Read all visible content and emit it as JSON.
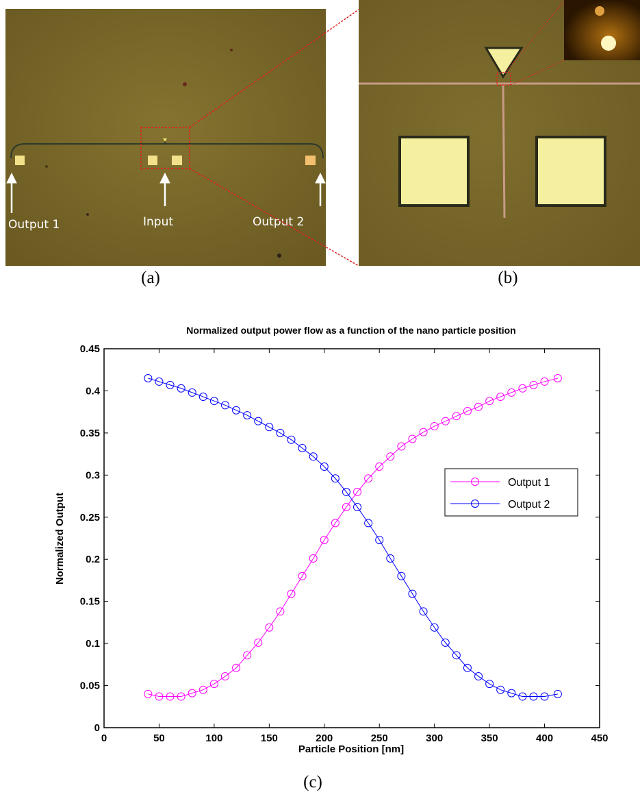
{
  "figure": {
    "panel_a": {
      "caption": "(a)",
      "labels": {
        "output1": "Output 1",
        "input": "Input",
        "output2": "Output 2"
      },
      "colors": {
        "background": "#7c6a2a",
        "pad": "#f3e08a",
        "waveguide": "#2d3a2a"
      }
    },
    "panel_b": {
      "caption": "(b)",
      "colors": {
        "background": "#7a6a2c",
        "pad": "#f5f0a0",
        "waveguide": "#c79b86"
      }
    },
    "panel_c": {
      "caption": "(c)"
    },
    "zoom_box_color": "#e02020"
  },
  "chart_data": {
    "type": "line",
    "title": "Normalized output power flow as a function of the nano particle position",
    "xlabel": "Particle Position [nm]",
    "ylabel": "Normalized Output",
    "xlim": [
      0,
      450
    ],
    "ylim": [
      0,
      0.45
    ],
    "xticks": [
      0,
      50,
      100,
      150,
      200,
      250,
      300,
      350,
      400,
      450
    ],
    "yticks": [
      0,
      0.05,
      0.1,
      0.15,
      0.2,
      0.25,
      0.3,
      0.35,
      0.4,
      0.45
    ],
    "ytick_labels": [
      "0",
      "0.05",
      "0.1",
      "0.15",
      "0.2",
      "0.25",
      "0.3",
      "0.35",
      "0.4",
      "0.45"
    ],
    "legend_position": "right",
    "grid": false,
    "x": [
      40,
      50,
      60,
      70,
      80,
      90,
      100,
      110,
      120,
      130,
      140,
      150,
      160,
      170,
      180,
      190,
      200,
      210,
      220,
      230,
      240,
      250,
      260,
      270,
      280,
      290,
      300,
      310,
      320,
      330,
      340,
      350,
      360,
      370,
      380,
      390,
      400,
      412
    ],
    "series": [
      {
        "name": "Output 1",
        "color": "#ff00ff",
        "marker": "circle",
        "values": [
          0.04,
          0.037,
          0.037,
          0.037,
          0.041,
          0.045,
          0.052,
          0.061,
          0.071,
          0.086,
          0.101,
          0.119,
          0.138,
          0.159,
          0.18,
          0.201,
          0.223,
          0.243,
          0.262,
          0.28,
          0.296,
          0.31,
          0.322,
          0.334,
          0.343,
          0.351,
          0.358,
          0.364,
          0.37,
          0.376,
          0.381,
          0.388,
          0.393,
          0.398,
          0.403,
          0.407,
          0.411,
          0.415
        ]
      },
      {
        "name": "Output 2",
        "color": "#0000ff",
        "marker": "circle",
        "values": [
          0.415,
          0.411,
          0.407,
          0.403,
          0.398,
          0.393,
          0.388,
          0.383,
          0.377,
          0.371,
          0.364,
          0.357,
          0.35,
          0.342,
          0.332,
          0.322,
          0.31,
          0.296,
          0.28,
          0.262,
          0.243,
          0.223,
          0.201,
          0.18,
          0.159,
          0.138,
          0.119,
          0.101,
          0.086,
          0.071,
          0.061,
          0.052,
          0.045,
          0.041,
          0.037,
          0.037,
          0.037,
          0.04
        ]
      }
    ]
  }
}
